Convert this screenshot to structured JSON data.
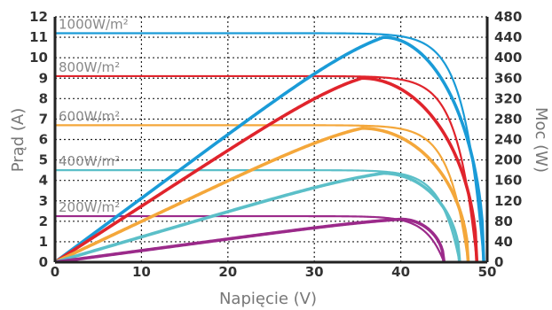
{
  "chart_data": {
    "type": "line",
    "xlabel": "Napięcie (V)",
    "ylabel": "Prąd (A)",
    "y2label": "Moc (W)",
    "xlim": [
      0,
      50
    ],
    "ylim": [
      0,
      12
    ],
    "y2lim": [
      0,
      480
    ],
    "xticks": [
      "0",
      "10",
      "20",
      "30",
      "40",
      "50"
    ],
    "yticks": [
      "0",
      "1",
      "2",
      "3",
      "4",
      "5",
      "6",
      "7",
      "8",
      "9",
      "10",
      "11",
      "12"
    ],
    "y2ticks": [
      "0",
      "40",
      "80",
      "120",
      "160",
      "200",
      "240",
      "280",
      "320",
      "360",
      "400",
      "440",
      "480"
    ],
    "grid": true,
    "annotations": [
      {
        "text": "1000W/m²",
        "color": "#1a9bd7"
      },
      {
        "text": "800W/m²",
        "color": "#e0242c"
      },
      {
        "text": "600W/m²",
        "color": "#f4a73a"
      },
      {
        "text": "400W/m²",
        "color": "#5bbfc8"
      },
      {
        "text": "200W/m²",
        "color": "#9b2a8a"
      }
    ],
    "series": [
      {
        "color": "#1a9bd7",
        "isc": 11.2,
        "voc": 49.6,
        "pmax": 440,
        "vmp": 38.0
      },
      {
        "color": "#e0242c",
        "isc": 9.1,
        "voc": 48.8,
        "pmax": 360,
        "vmp": 35.5
      },
      {
        "color": "#f4a73a",
        "isc": 6.7,
        "voc": 47.8,
        "pmax": 262,
        "vmp": 35.5
      },
      {
        "color": "#5bbfc8",
        "isc": 4.5,
        "voc": 46.8,
        "pmax": 174,
        "vmp": 38.0
      },
      {
        "color": "#9b2a8a",
        "isc": 2.25,
        "voc": 45.0,
        "pmax": 84,
        "vmp": 40.0
      }
    ]
  }
}
